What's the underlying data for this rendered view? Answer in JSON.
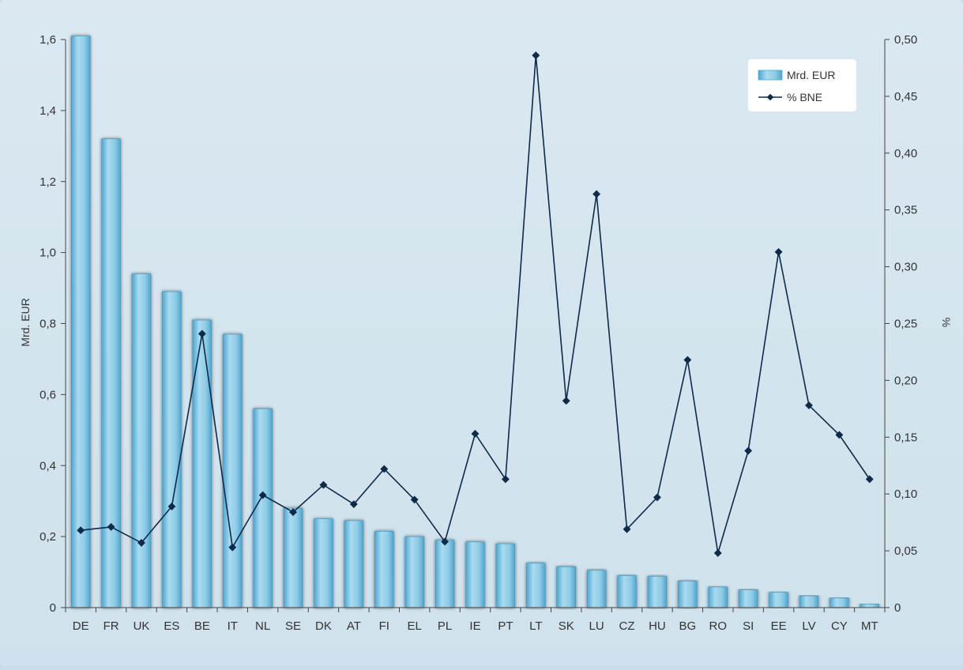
{
  "chart_data": {
    "type": "bar",
    "categories": [
      "DE",
      "FR",
      "UK",
      "ES",
      "BE",
      "IT",
      "NL",
      "SE",
      "DK",
      "AT",
      "FI",
      "EL",
      "PL",
      "IE",
      "PT",
      "LT",
      "SK",
      "LU",
      "CZ",
      "HU",
      "BG",
      "RO",
      "SI",
      "EE",
      "LV",
      "CY",
      "MT"
    ],
    "series": [
      {
        "name": "Mrd. EUR",
        "type": "bar",
        "axis": "left",
        "values": [
          1.61,
          1.32,
          0.94,
          0.89,
          0.81,
          0.77,
          0.56,
          0.28,
          0.25,
          0.245,
          0.215,
          0.2,
          0.19,
          0.185,
          0.18,
          0.125,
          0.115,
          0.105,
          0.09,
          0.088,
          0.075,
          0.058,
          0.05,
          0.043,
          0.033,
          0.027,
          0.01
        ]
      },
      {
        "name": "% BNE",
        "type": "line",
        "axis": "right",
        "values": [
          0.068,
          0.071,
          0.057,
          0.089,
          0.241,
          0.053,
          0.099,
          0.084,
          0.108,
          0.091,
          0.122,
          0.095,
          0.058,
          0.153,
          0.113,
          0.486,
          0.182,
          0.364,
          0.069,
          0.097,
          0.218,
          0.048,
          0.138,
          0.313,
          0.178,
          0.152,
          0.113
        ]
      }
    ],
    "ylabel": "Mrd. EUR",
    "y2label": "%",
    "ylim": [
      0,
      1.6
    ],
    "y2lim": [
      0,
      0.5
    ],
    "yticks": [
      "0",
      "0,2",
      "0,4",
      "0,6",
      "0,8",
      "1,0",
      "1,2",
      "1,4",
      "1,6"
    ],
    "y2ticks": [
      "0",
      "0,05",
      "0,10",
      "0,15",
      "0,20",
      "0,25",
      "0,30",
      "0,35",
      "0,40",
      "0,45",
      "0,50"
    ],
    "legend_position": "top-right",
    "colors": {
      "bar": "#8fcbe6",
      "bar_dark": "#4fa6cf",
      "line": "#0e2a4a",
      "axis": "#444444"
    }
  }
}
